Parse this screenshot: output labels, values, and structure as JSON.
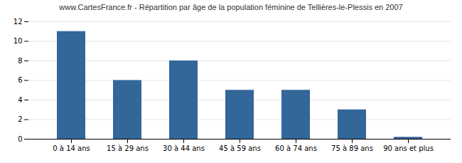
{
  "chart_data": {
    "type": "bar",
    "title": "www.CartesFrance.fr - Répartition par âge de la population féminine de Tellières-le-Plessis en 2007",
    "categories": [
      "0 à 14 ans",
      "15 à 29 ans",
      "30 à 44 ans",
      "45 à 59 ans",
      "60 à 74 ans",
      "75 à 89 ans",
      "90 ans et plus"
    ],
    "values": [
      11,
      6,
      8,
      5,
      5,
      3,
      0.2
    ],
    "color": "#336699",
    "ylim": [
      0,
      12
    ],
    "yticks": [
      0,
      2,
      4,
      6,
      8,
      10,
      12
    ],
    "grid": true
  }
}
